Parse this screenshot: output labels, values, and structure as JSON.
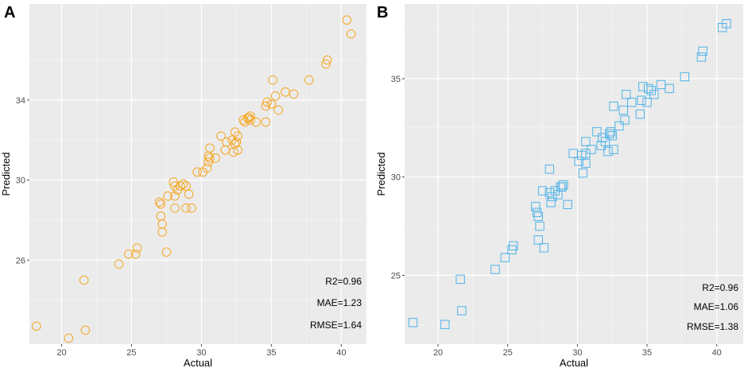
{
  "panels": [
    {
      "label": "A",
      "color": "#F5A623",
      "marker": "circle",
      "metrics": [
        "R2=0.96",
        "MAE=1.23",
        "RMSE=1.64"
      ],
      "chart_data": {
        "type": "scatter",
        "title": "",
        "xlabel": "Actual",
        "ylabel": "Predicted",
        "xlim": [
          17.7,
          41.8
        ],
        "ylim": [
          21.8,
          38.8
        ],
        "xticks": [
          20,
          25,
          30,
          35,
          40
        ],
        "yticks": [
          26,
          30,
          34
        ],
        "grid": true,
        "x": [
          18.2,
          20.5,
          21.6,
          21.7,
          24.1,
          24.8,
          25.3,
          25.4,
          27.0,
          27.1,
          27.1,
          27.2,
          27.2,
          27.5,
          27.6,
          28.0,
          28.1,
          28.1,
          28.1,
          28.3,
          28.5,
          28.7,
          28.9,
          28.9,
          29.1,
          29.3,
          29.7,
          30.1,
          30.4,
          30.5,
          30.5,
          30.6,
          30.6,
          31.0,
          31.4,
          31.7,
          31.8,
          32.2,
          32.3,
          32.4,
          32.4,
          32.5,
          32.6,
          32.6,
          33.0,
          33.1,
          33.3,
          33.5,
          33.5,
          33.4,
          33.9,
          34.6,
          34.6,
          34.7,
          35.0,
          35.1,
          35.3,
          35.5,
          36.0,
          36.6,
          37.7,
          38.9,
          39.0,
          40.4,
          40.7
        ],
        "y": [
          22.7,
          22.1,
          25.0,
          22.5,
          25.8,
          26.3,
          26.3,
          26.6,
          28.9,
          28.8,
          28.2,
          27.8,
          27.4,
          26.4,
          29.2,
          29.9,
          29.2,
          28.6,
          29.7,
          29.5,
          29.7,
          29.8,
          29.7,
          28.6,
          29.3,
          28.6,
          30.4,
          30.4,
          30.6,
          30.9,
          31.2,
          31.6,
          31.1,
          31.1,
          32.2,
          31.5,
          31.9,
          32.0,
          31.4,
          31.8,
          32.4,
          31.9,
          32.2,
          31.5,
          33.0,
          32.9,
          33.1,
          33.0,
          33.2,
          33.1,
          32.9,
          32.9,
          33.7,
          33.9,
          33.8,
          35.0,
          34.2,
          33.5,
          34.4,
          34.3,
          35.0,
          35.8,
          36.0,
          38.0,
          37.3
        ]
      }
    },
    {
      "label": "B",
      "color": "#4FB3E8",
      "marker": "square",
      "metrics": [
        "R2=0.96",
        "MAE=1.06",
        "RMSE=1.38"
      ],
      "chart_data": {
        "type": "scatter",
        "title": "",
        "xlabel": "Actual",
        "ylabel": "Predicted",
        "xlim": [
          17.6,
          41.9
        ],
        "ylim": [
          21.5,
          38.8
        ],
        "xticks": [
          20,
          25,
          30,
          35,
          40
        ],
        "yticks": [
          25,
          30,
          35
        ],
        "grid": true,
        "x": [
          18.2,
          20.5,
          21.6,
          21.7,
          24.1,
          24.8,
          25.3,
          25.4,
          27.0,
          27.1,
          27.2,
          27.2,
          27.3,
          27.5,
          27.6,
          28.0,
          28.0,
          28.1,
          28.2,
          28.4,
          28.6,
          28.8,
          28.9,
          29.0,
          29.3,
          29.7,
          30.1,
          30.3,
          30.4,
          30.6,
          30.6,
          30.6,
          31.0,
          31.4,
          31.7,
          31.8,
          32.0,
          32.2,
          32.3,
          32.4,
          32.5,
          32.6,
          32.6,
          33.0,
          33.3,
          33.4,
          33.5,
          33.9,
          34.6,
          34.5,
          34.7,
          35.0,
          35.1,
          35.3,
          35.5,
          36.0,
          36.6,
          37.7,
          38.9,
          39.0,
          40.4,
          40.7
        ],
        "y": [
          22.6,
          22.5,
          24.8,
          23.2,
          25.3,
          25.9,
          26.3,
          26.5,
          28.5,
          28.2,
          28.0,
          26.8,
          27.5,
          29.3,
          26.4,
          30.4,
          29.2,
          28.7,
          29.0,
          29.3,
          29.1,
          29.5,
          29.5,
          29.6,
          28.6,
          31.2,
          30.8,
          31.1,
          30.2,
          31.8,
          31.2,
          30.7,
          31.4,
          32.3,
          31.6,
          32.0,
          31.8,
          31.3,
          32.2,
          32.3,
          32.1,
          33.6,
          31.4,
          32.6,
          33.4,
          32.9,
          34.2,
          33.8,
          33.9,
          33.2,
          34.6,
          33.8,
          34.5,
          34.4,
          34.2,
          34.7,
          34.5,
          35.1,
          36.1,
          36.4,
          37.6,
          37.8
        ]
      }
    }
  ]
}
